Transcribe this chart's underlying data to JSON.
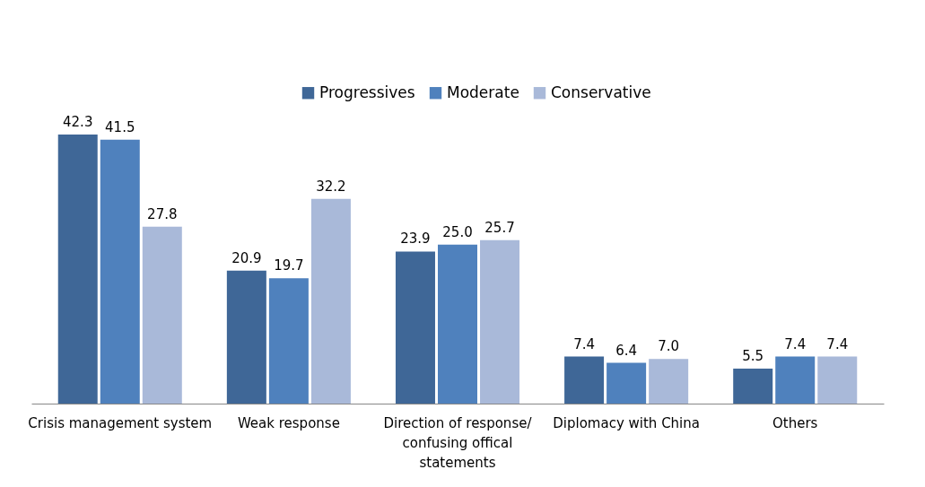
{
  "chart_data": {
    "type": "bar",
    "categories": [
      "Crisis management system",
      "Weak response",
      "Direction of response/ confusing offical statements",
      "Diplomacy with China",
      "Others"
    ],
    "series": [
      {
        "name": "Progressives",
        "color": "#3f6797",
        "values": [
          42.3,
          20.9,
          23.9,
          7.4,
          5.5
        ],
        "value_labels": [
          "42.3",
          "20.9",
          "23.9",
          "7.4",
          "5.5"
        ]
      },
      {
        "name": "Moderate",
        "color": "#4f81bd",
        "values": [
          41.5,
          19.7,
          25.0,
          6.4,
          7.4
        ],
        "value_labels": [
          "41.5",
          "19.7",
          "25.0",
          "6.4",
          "7.4"
        ]
      },
      {
        "name": "Conservative",
        "color": "#a9b9d9",
        "values": [
          27.8,
          32.2,
          25.7,
          7.0,
          7.4
        ],
        "value_labels": [
          "27.8",
          "32.2",
          "25.7",
          "7.0",
          "7.4"
        ]
      }
    ],
    "legend": "top",
    "tick_labels": "x"
  }
}
